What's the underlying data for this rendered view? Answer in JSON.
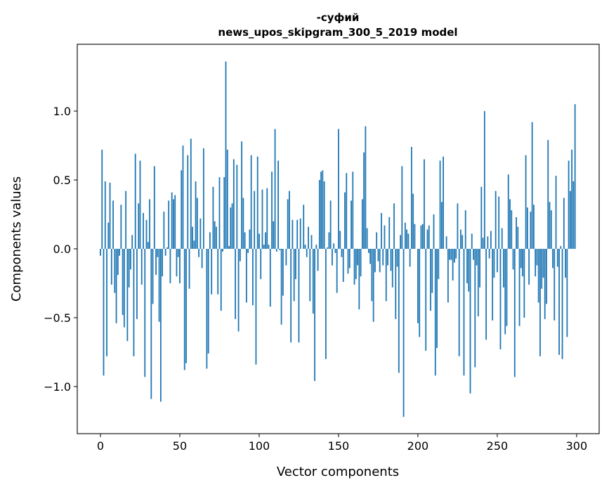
{
  "chart_data": {
    "type": "bar",
    "title_line1": "-суфий",
    "title_line2": "news_upos_skipgram_300_5_2019 model",
    "xlabel": "Vector components",
    "ylabel": "Components values",
    "xlim": [
      -14.6,
      314.2
    ],
    "ylim": [
      -1.342,
      1.485
    ],
    "xticks": [
      0,
      50,
      100,
      150,
      200,
      250,
      300
    ],
    "xtick_labels": [
      "0",
      "50",
      "100",
      "150",
      "200",
      "250",
      "300"
    ],
    "yticks": [
      -1.0,
      -0.5,
      0.0,
      0.5,
      1.0
    ],
    "ytick_labels": [
      "−1.0",
      "−0.5",
      "0.0",
      "0.5",
      "1.0"
    ],
    "grid": false,
    "bar_color": "#1f77b4",
    "values": [
      -0.05,
      0.72,
      -0.92,
      0.49,
      -0.78,
      0.19,
      0.48,
      -0.26,
      0.35,
      -0.32,
      -0.54,
      -0.19,
      -0.05,
      0.32,
      -0.48,
      -0.57,
      0.42,
      -0.67,
      -0.28,
      -0.15,
      0.1,
      -0.78,
      0.69,
      -0.51,
      0.33,
      0.64,
      -0.26,
      0.26,
      -0.93,
      0.21,
      0.05,
      0.36,
      -1.09,
      -0.4,
      0.6,
      -0.19,
      -0.06,
      -0.53,
      -1.11,
      -0.2,
      0.27,
      -0.05,
      0.01,
      0.35,
      -0.25,
      0.41,
      0.36,
      0.39,
      -0.2,
      -0.06,
      -0.25,
      0.57,
      0.75,
      -0.88,
      -0.83,
      0.68,
      -0.29,
      0.8,
      0.16,
      0.06,
      0.49,
      0.37,
      -0.06,
      0.22,
      -0.14,
      0.73,
      0.0,
      -0.87,
      -0.76,
      0.12,
      -0.33,
      0.45,
      0.2,
      0.16,
      -0.33,
      0.52,
      -0.45,
      -0.02,
      0.52,
      1.36,
      0.72,
      0.02,
      0.3,
      0.33,
      0.65,
      -0.51,
      0.61,
      -0.6,
      -0.09,
      0.78,
      0.37,
      0.12,
      -0.39,
      -0.03,
      0.14,
      0.68,
      -0.41,
      0.42,
      -0.84,
      0.67,
      0.11,
      -0.22,
      0.43,
      0.03,
      0.12,
      0.44,
      0.03,
      -0.42,
      0.56,
      0.2,
      0.87,
      -0.02,
      0.64,
      -0.01,
      -0.55,
      -0.34,
      0.0,
      -0.12,
      0.36,
      0.42,
      -0.68,
      0.21,
      -0.38,
      -0.22,
      0.21,
      -0.68,
      0.22,
      0.0,
      0.32,
      0.03,
      -0.06,
      0.16,
      -0.38,
      0.1,
      -0.47,
      -0.96,
      0.03,
      -0.16,
      0.5,
      0.56,
      0.57,
      0.49,
      -0.8,
      0.01,
      0.12,
      0.35,
      -0.12,
      0.04,
      -0.03,
      -0.32,
      0.87,
      0.13,
      -0.06,
      -0.24,
      0.41,
      0.55,
      -0.18,
      -0.14,
      0.35,
      0.56,
      -0.26,
      -0.22,
      -0.12,
      -0.44,
      -0.2,
      0.36,
      0.7,
      0.89,
      0.15,
      -0.03,
      -0.11,
      -0.38,
      -0.53,
      -0.17,
      0.12,
      -0.09,
      -0.17,
      0.26,
      -0.12,
      0.17,
      -0.38,
      -0.12,
      0.23,
      -0.16,
      -0.28,
      0.33,
      -0.51,
      -0.13,
      -0.9,
      0.1,
      0.6,
      -1.22,
      0.19,
      0.14,
      0.11,
      -0.13,
      0.74,
      0.4,
      0.18,
      0.0,
      -0.54,
      -0.64,
      0.17,
      0.18,
      0.65,
      -0.74,
      0.14,
      0.17,
      -0.45,
      -0.32,
      0.25,
      -0.92,
      -0.72,
      -0.22,
      0.64,
      0.34,
      0.67,
      0.0,
      0.09,
      -0.39,
      -0.08,
      -0.08,
      -0.23,
      -0.1,
      -0.07,
      0.33,
      -0.78,
      0.14,
      0.1,
      -0.92,
      0.28,
      -0.25,
      -0.31,
      -1.05,
      0.11,
      -0.08,
      -0.86,
      -0.12,
      -0.49,
      -0.28,
      0.45,
      0.08,
      1.0,
      -0.66,
      0.09,
      -0.07,
      0.13,
      -0.52,
      -0.21,
      0.42,
      -0.17,
      0.38,
      -0.73,
      0.15,
      -0.28,
      -0.62,
      -0.56,
      0.54,
      0.36,
      0.28,
      -0.15,
      -0.93,
      0.23,
      0.16,
      -0.56,
      -0.14,
      -0.2,
      -0.5,
      0.68,
      0.3,
      -0.26,
      0.27,
      0.92,
      0.32,
      -0.2,
      -0.12,
      -0.39,
      -0.78,
      -0.29,
      -0.21,
      -0.51,
      -0.4,
      0.79,
      0.34,
      0.28,
      -0.14,
      -0.52,
      0.53,
      -0.13,
      -0.77,
      0.02,
      -0.8,
      0.37,
      -0.21,
      -0.64,
      0.64,
      0.42,
      0.72,
      0.49,
      1.05
    ]
  }
}
